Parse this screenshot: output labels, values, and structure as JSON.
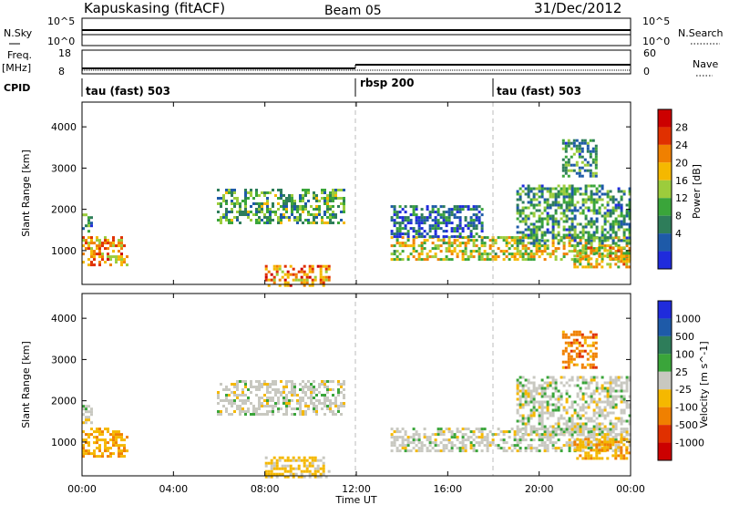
{
  "header": {
    "station": "Kapuskasing (fitACF)",
    "beam": "Beam 05",
    "date": "31/Dec/2012"
  },
  "noise_panel": {
    "left_label": "N.Sky",
    "right_label": "N.Search",
    "left_ticks": [
      "10^5",
      "10^0"
    ],
    "right_ticks": [
      "10^5",
      "10^0"
    ]
  },
  "freq_panel": {
    "left_label": "Freq.",
    "left_unit": "[MHz]",
    "right_label": "Nave",
    "left_ticks": [
      "18",
      "8"
    ],
    "right_ticks": [
      "60",
      "0"
    ]
  },
  "cpid": {
    "label": "CPID",
    "segments": [
      {
        "name": "tau (fast) 503",
        "start_hour": 0
      },
      {
        "name": "rbsp 200",
        "start_hour": 12
      },
      {
        "name": "tau (fast) 503",
        "start_hour": 18
      }
    ]
  },
  "x_axis": {
    "label": "Time UT",
    "ticks": [
      "00:00",
      "04:00",
      "08:00",
      "12:00",
      "16:00",
      "20:00",
      "00:00"
    ],
    "hours": [
      0,
      4,
      8,
      12,
      16,
      20,
      24
    ]
  },
  "y_axis": {
    "label": "Slant Range [km]",
    "ticks": [
      1000,
      2000,
      3000,
      4000
    ]
  },
  "colors": {
    "power_scale": [
      "#1f2bdc",
      "#1e5aa8",
      "#2e7d5a",
      "#3aa53a",
      "#9ccc3c",
      "#f5b800",
      "#f08000",
      "#e03000",
      "#cc0000"
    ],
    "velocity_scale": [
      "#1f2bdc",
      "#1e5aa8",
      "#2e7d5a",
      "#3aa53a",
      "#c8c8c0",
      "#f5b800",
      "#f08000",
      "#e03000",
      "#cc0000"
    ]
  },
  "chart_data": [
    {
      "type": "heatmap",
      "name": "power",
      "colorbar_label": "Power [dB]",
      "colorbar_ticks": [
        "28",
        "24",
        "20",
        "16",
        "12",
        "8",
        "4"
      ],
      "xlim": [
        0,
        24
      ],
      "ylim": [
        180,
        4600
      ],
      "echo_regions": [
        {
          "t0": 0.0,
          "t1": 2.0,
          "r0": 650,
          "r1": 1350,
          "level": 0.7
        },
        {
          "t0": 0.0,
          "t1": 0.4,
          "r0": 1500,
          "r1": 1900,
          "level": 0.3
        },
        {
          "t0": 5.9,
          "t1": 11.5,
          "r0": 1700,
          "r1": 2500,
          "level": 0.35
        },
        {
          "t0": 8.0,
          "t1": 10.8,
          "r0": 180,
          "r1": 650,
          "level": 0.75
        },
        {
          "t0": 13.5,
          "t1": 24.0,
          "r0": 800,
          "r1": 1350,
          "level": 0.55
        },
        {
          "t0": 13.5,
          "t1": 17.5,
          "r0": 1350,
          "r1": 2100,
          "level": 0.15
        },
        {
          "t0": 19.0,
          "t1": 24.0,
          "r0": 1200,
          "r1": 2600,
          "level": 0.3
        },
        {
          "t0": 21.0,
          "t1": 22.5,
          "r0": 2800,
          "r1": 3700,
          "level": 0.3
        },
        {
          "t0": 21.5,
          "t1": 24.0,
          "r0": 600,
          "r1": 1100,
          "level": 0.6
        }
      ]
    },
    {
      "type": "heatmap",
      "name": "velocity",
      "colorbar_label": "Velocity [m s^-1]",
      "colorbar_ticks": [
        "1000",
        "500",
        "100",
        "25",
        "-25",
        "-100",
        "-500",
        "-1000"
      ],
      "xlim": [
        0,
        24
      ],
      "ylim": [
        180,
        4600
      ],
      "echo_regions": [
        {
          "t0": 0.0,
          "t1": 2.0,
          "r0": 650,
          "r1": 1350,
          "level": -0.3
        },
        {
          "t0": 0.0,
          "t1": 0.4,
          "r0": 1500,
          "r1": 1900,
          "level": 0.0
        },
        {
          "t0": 5.9,
          "t1": 11.5,
          "r0": 1700,
          "r1": 2500,
          "level": 0.0
        },
        {
          "t0": 8.0,
          "t1": 10.8,
          "r0": 180,
          "r1": 650,
          "level": -0.2
        },
        {
          "t0": 13.5,
          "t1": 24.0,
          "r0": 800,
          "r1": 1350,
          "level": 0.0
        },
        {
          "t0": 19.0,
          "t1": 24.0,
          "r0": 1200,
          "r1": 2600,
          "level": 0.0
        },
        {
          "t0": 21.0,
          "t1": 22.5,
          "r0": 2800,
          "r1": 3700,
          "level": -0.5
        },
        {
          "t0": 21.5,
          "t1": 24.0,
          "r0": 600,
          "r1": 1100,
          "level": -0.3
        }
      ]
    }
  ]
}
